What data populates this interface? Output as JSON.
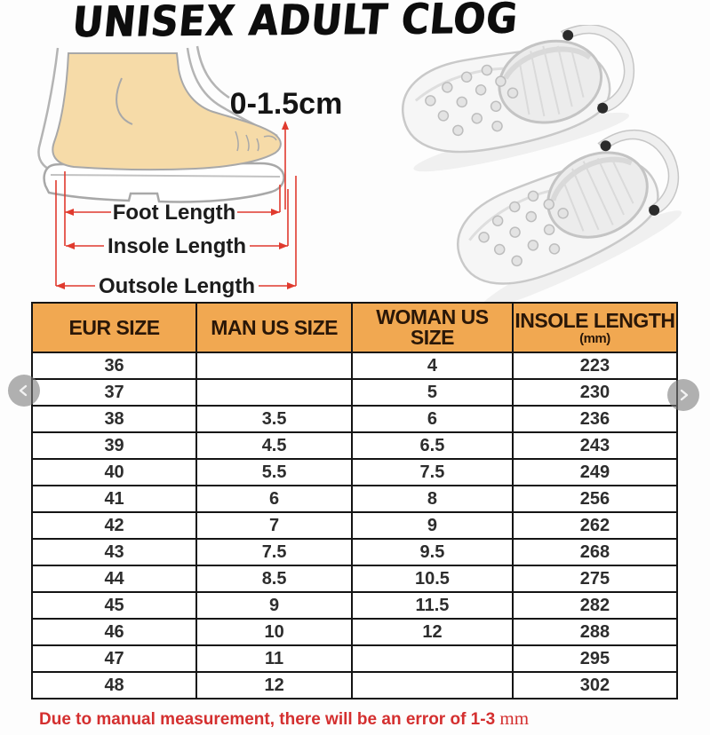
{
  "title": "UNISEX ADULT CLOG",
  "diagram": {
    "allowance_label": "0-1.5cm",
    "measurements": {
      "foot": "Foot Length",
      "insole": "Insole Length",
      "outsole": "Outsole Length"
    },
    "accent_color": "#e03a2e",
    "foot_skin_color": "#f6dba8",
    "outline_color": "#a8a8a8"
  },
  "product_image": {
    "description": "pair of white clogs with ventilation holes and heel straps"
  },
  "table": {
    "header_bg": "#f1a851",
    "header_text_color": "#2a1708",
    "columns": [
      {
        "label": "EUR SIZE",
        "sub": ""
      },
      {
        "label": "MAN US SIZE",
        "sub": ""
      },
      {
        "label": "WOMAN US SIZE",
        "sub": ""
      },
      {
        "label": "INSOLE LENGTH",
        "sub": "(mm)"
      }
    ],
    "rows": [
      [
        "36",
        "",
        "4",
        "223"
      ],
      [
        "37",
        "",
        "5",
        "230"
      ],
      [
        "38",
        "3.5",
        "6",
        "236"
      ],
      [
        "39",
        "4.5",
        "6.5",
        "243"
      ],
      [
        "40",
        "5.5",
        "7.5",
        "249"
      ],
      [
        "41",
        "6",
        "8",
        "256"
      ],
      [
        "42",
        "7",
        "9",
        "262"
      ],
      [
        "43",
        "7.5",
        "9.5",
        "268"
      ],
      [
        "44",
        "8.5",
        "10.5",
        "275"
      ],
      [
        "45",
        "9",
        "11.5",
        "282"
      ],
      [
        "46",
        "10",
        "12",
        "288"
      ],
      [
        "47",
        "11",
        "",
        "295"
      ],
      [
        "48",
        "12",
        "",
        "302"
      ]
    ]
  },
  "footer": {
    "note": "Due to manual measurement, there will be an error of 1-3",
    "unit": "mm",
    "color": "#d42f2f"
  },
  "carousel": {
    "prev_icon": "chevron-left",
    "next_icon": "chevron-right"
  }
}
